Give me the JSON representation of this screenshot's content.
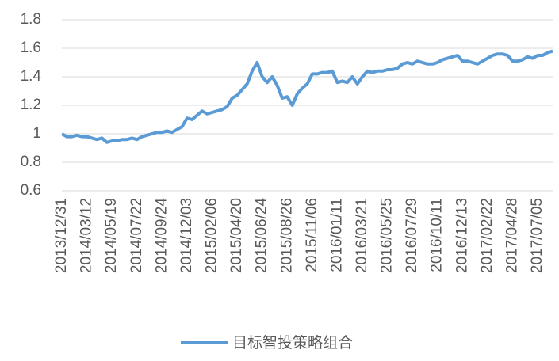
{
  "chart_data": {
    "type": "line",
    "categories": [
      "2013/12/31",
      null,
      null,
      null,
      null,
      "2014/03/12",
      null,
      null,
      null,
      null,
      "2014/05/19",
      null,
      null,
      null,
      null,
      "2014/07/22",
      null,
      null,
      null,
      null,
      "2014/09/24",
      null,
      null,
      null,
      null,
      "2014/12/03",
      null,
      null,
      null,
      null,
      "2015/02/06",
      null,
      null,
      null,
      null,
      "2015/04/20",
      null,
      null,
      null,
      null,
      "2015/06/24",
      null,
      null,
      null,
      null,
      "2015/08/26",
      null,
      null,
      null,
      null,
      "2015/11/06",
      null,
      null,
      null,
      null,
      "2016/01/11",
      null,
      null,
      null,
      null,
      "2016/03/21",
      null,
      null,
      null,
      null,
      "2016/05/25",
      null,
      null,
      null,
      null,
      "2016/07/29",
      null,
      null,
      null,
      null,
      "2016/10/11",
      null,
      null,
      null,
      null,
      "2016/12/13",
      null,
      null,
      null,
      null,
      "2017/02/22",
      null,
      null,
      null,
      null,
      "2017/04/28",
      null,
      null,
      null,
      null,
      "2017/07/05",
      null,
      null,
      null
    ],
    "series": [
      {
        "name": "目标智投策略组合",
        "color": "#5b9bd5",
        "values": [
          1.0,
          0.98,
          0.98,
          0.99,
          0.98,
          0.98,
          0.97,
          0.96,
          0.97,
          0.94,
          0.95,
          0.95,
          0.96,
          0.96,
          0.97,
          0.96,
          0.98,
          0.99,
          1.0,
          1.01,
          1.01,
          1.02,
          1.01,
          1.03,
          1.05,
          1.11,
          1.1,
          1.13,
          1.16,
          1.14,
          1.15,
          1.16,
          1.17,
          1.19,
          1.25,
          1.27,
          1.31,
          1.35,
          1.44,
          1.5,
          1.4,
          1.36,
          1.4,
          1.34,
          1.25,
          1.26,
          1.2,
          1.28,
          1.32,
          1.35,
          1.42,
          1.42,
          1.43,
          1.43,
          1.44,
          1.36,
          1.37,
          1.36,
          1.4,
          1.35,
          1.4,
          1.44,
          1.43,
          1.44,
          1.44,
          1.45,
          1.45,
          1.46,
          1.49,
          1.5,
          1.49,
          1.51,
          1.5,
          1.49,
          1.49,
          1.5,
          1.52,
          1.53,
          1.54,
          1.55,
          1.51,
          1.51,
          1.5,
          1.49,
          1.51,
          1.53,
          1.55,
          1.56,
          1.56,
          1.55,
          1.51,
          1.51,
          1.52,
          1.54,
          1.53,
          1.55,
          1.55,
          1.57,
          1.58
        ]
      }
    ],
    "ylim": [
      0.6,
      1.8
    ],
    "yticks": [
      0.6,
      0.8,
      1,
      1.2,
      1.4,
      1.6,
      1.8
    ],
    "grid": true,
    "legend": "bottom"
  }
}
